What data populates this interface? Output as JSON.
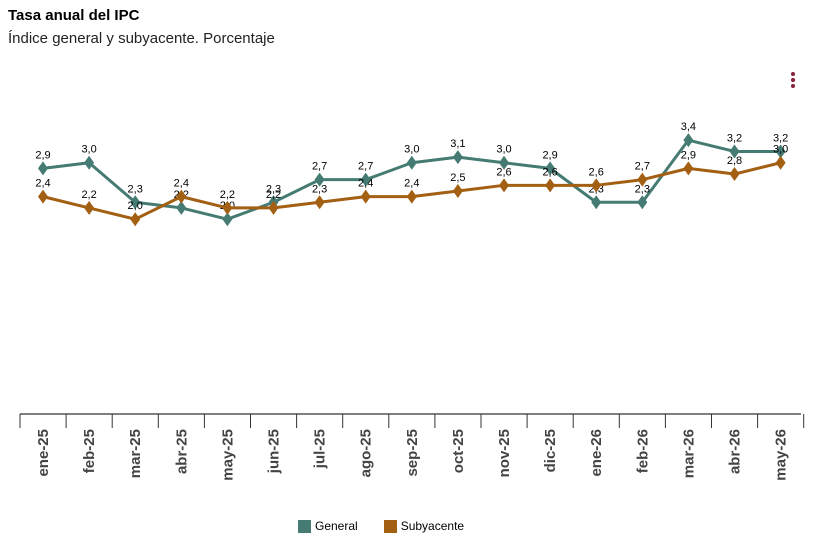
{
  "title": "Tasa anual del IPC",
  "subtitle": "Índice general y subyacente. Porcentaje",
  "menu_icon": "more-vertical-icon",
  "colors": {
    "general": "#457b73",
    "subyacente": "#a35f12",
    "menu": "#8a1f3d",
    "axis": "#333333"
  },
  "chart_data": {
    "type": "line",
    "title": "Tasa anual del IPC",
    "subtitle": "Índice general y subyacente. Porcentaje",
    "categories": [
      "ene-25",
      "feb-25",
      "mar-25",
      "abr-25",
      "may-25",
      "jun-25",
      "jul-25",
      "ago-25",
      "sep-25",
      "oct-25",
      "nov-25",
      "dic-25",
      "ene-26",
      "feb-26",
      "mar-26",
      "abr-26",
      "may-26"
    ],
    "series": [
      {
        "name": "General",
        "values": [
          2.9,
          3.0,
          2.3,
          2.2,
          2.0,
          2.3,
          2.7,
          2.7,
          3.0,
          3.1,
          3.0,
          2.9,
          2.3,
          2.3,
          3.4,
          3.2,
          3.2
        ],
        "labels": [
          "2,9",
          "3,0",
          "2,3",
          "2,2",
          "2,0",
          "2,3",
          "2,7",
          "2,7",
          "3,0",
          "3,1",
          "3,0",
          "2,9",
          "2,3",
          "2,3",
          "3,4",
          "3,2",
          "3,2"
        ]
      },
      {
        "name": "Subyacente",
        "values": [
          2.4,
          2.2,
          2.0,
          2.4,
          2.2,
          2.2,
          2.3,
          2.4,
          2.4,
          2.5,
          2.6,
          2.6,
          2.6,
          2.7,
          2.9,
          2.8,
          3.0
        ],
        "labels": [
          "2,4",
          "2,2",
          "2,0",
          "2,4",
          "2,2",
          "2,2",
          "2,3",
          "2,4",
          "2,4",
          "2,5",
          "2,6",
          "2,6",
          "2,6",
          "2,7",
          "2,9",
          "2,8",
          "3,0"
        ]
      }
    ],
    "ylim": [
      -2.0,
      4.2
    ],
    "y_axis_visible": false,
    "grid": false,
    "marker": "diamond",
    "legend_position": "bottom"
  }
}
